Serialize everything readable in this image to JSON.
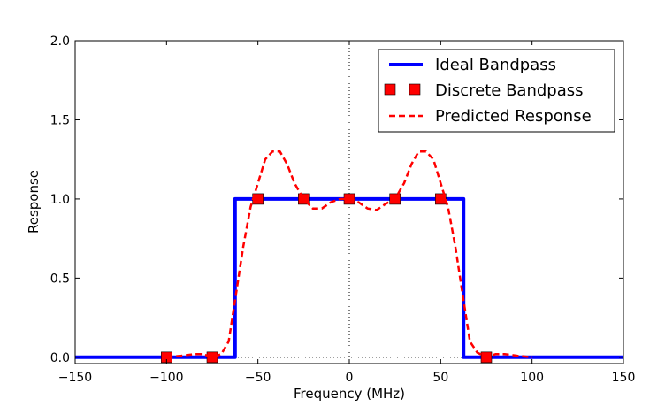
{
  "chart_data": {
    "type": "line",
    "title": "",
    "xlabel": "Frequency (MHz)",
    "ylabel": "Response",
    "xlim": [
      -150,
      150
    ],
    "ylim": [
      -0.04,
      2.0
    ],
    "xticks": [
      -150,
      -100,
      -50,
      0,
      50,
      100,
      150
    ],
    "xtick_labels": [
      "−150",
      "−100",
      "−50",
      "0",
      "50",
      "100",
      "150"
    ],
    "yticks": [
      0.0,
      0.5,
      1.0,
      1.5,
      2.0
    ],
    "ytick_labels": [
      "0.0",
      "0.5",
      "1.0",
      "1.5",
      "2.0"
    ],
    "grid": false,
    "reference_lines": {
      "vertical_x": 0,
      "horizontal_y": 0,
      "style": "dotted"
    },
    "legend": {
      "position": "top-right",
      "entries": [
        "Ideal Bandpass",
        "Discrete Bandpass",
        "Predicted Response"
      ]
    },
    "series": [
      {
        "name": "Ideal Bandpass",
        "style": "solid",
        "color": "#0000ff",
        "x": [
          -150,
          -62.5,
          -62.5,
          62.5,
          62.5,
          150
        ],
        "y": [
          0,
          0,
          1,
          1,
          0,
          0
        ]
      },
      {
        "name": "Discrete Bandpass",
        "style": "markers",
        "marker": "square",
        "color": "#ff0000",
        "x": [
          -100,
          -75,
          -50,
          -25,
          0,
          25,
          50,
          75
        ],
        "y": [
          0,
          0,
          1,
          1,
          1,
          1,
          1,
          0
        ]
      },
      {
        "name": "Predicted Response",
        "style": "dashed",
        "color": "#ff0000",
        "x": [
          -100,
          -92,
          -85,
          -80,
          -75,
          -70,
          -66,
          -62,
          -58,
          -54,
          -50,
          -46,
          -42,
          -38,
          -34,
          -30,
          -25,
          -20,
          -15,
          -10,
          -5,
          0,
          5,
          10,
          15,
          20,
          25,
          30,
          34,
          38,
          42,
          46,
          50,
          54,
          58,
          62,
          66,
          70,
          75,
          80,
          85,
          92,
          100
        ],
        "y": [
          0,
          0.01,
          0.02,
          0.02,
          0.0,
          0.02,
          0.1,
          0.4,
          0.7,
          0.95,
          1.1,
          1.25,
          1.3,
          1.3,
          1.22,
          1.1,
          1.0,
          0.94,
          0.94,
          0.98,
          1.0,
          1.0,
          0.98,
          0.94,
          0.93,
          0.97,
          1.0,
          1.1,
          1.22,
          1.3,
          1.3,
          1.25,
          1.1,
          0.95,
          0.7,
          0.4,
          0.1,
          0.03,
          0.0,
          0.02,
          0.02,
          0.01,
          0
        ]
      }
    ]
  }
}
